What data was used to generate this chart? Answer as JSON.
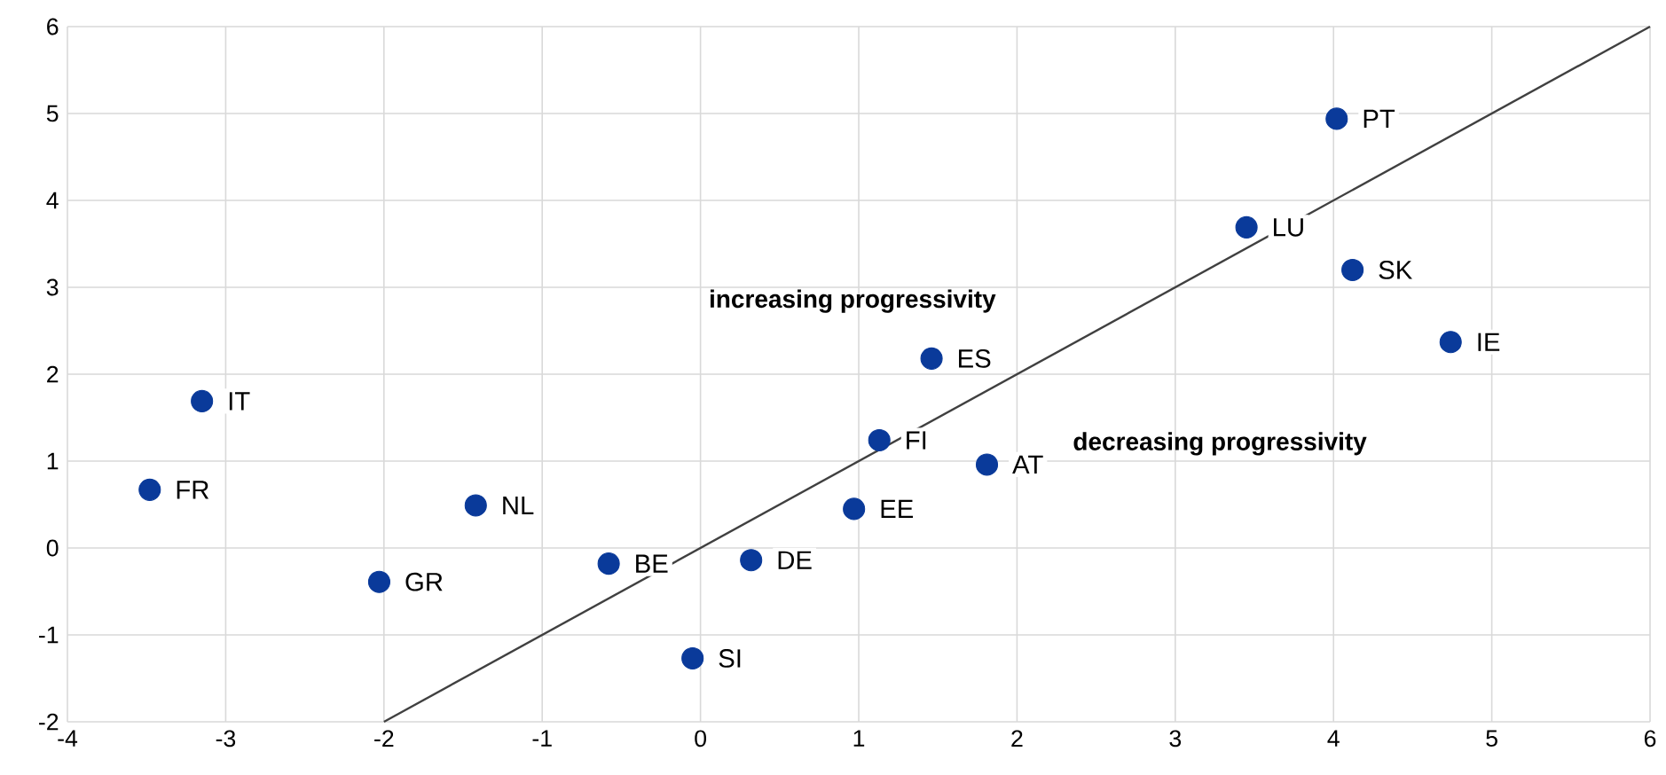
{
  "chart_data": {
    "type": "scatter",
    "xlim": [
      -4,
      6
    ],
    "ylim": [
      -2,
      6
    ],
    "xticks": [
      -4,
      -3,
      -2,
      -1,
      0,
      1,
      2,
      3,
      4,
      5,
      6
    ],
    "yticks": [
      -2,
      -1,
      0,
      1,
      2,
      3,
      4,
      5,
      6
    ],
    "grid": true,
    "series": [
      {
        "marker": "circle",
        "color": "#0a3a9a",
        "x": [
          -3.15,
          -3.48,
          -2.03,
          -1.42,
          -0.58,
          -0.05,
          0.32,
          0.97,
          1.13,
          1.46,
          1.81,
          3.45,
          4.02,
          4.12,
          4.74
        ],
        "values": [
          1.69,
          0.67,
          -0.39,
          0.49,
          -0.18,
          -1.27,
          -0.14,
          0.45,
          1.24,
          2.18,
          0.96,
          3.69,
          4.94,
          3.2,
          2.37
        ]
      },
      {
        "type": "line",
        "marker": "none",
        "color": "#404040",
        "x": [
          -2,
          6
        ],
        "values": [
          -2,
          6
        ]
      }
    ],
    "annotations": [
      {
        "text": "IT",
        "x": -3.15,
        "y": 1.69
      },
      {
        "text": "FR",
        "x": -3.48,
        "y": 0.67
      },
      {
        "text": "GR",
        "x": -2.03,
        "y": -0.39
      },
      {
        "text": "NL",
        "x": -1.42,
        "y": 0.49
      },
      {
        "text": "BE",
        "x": -0.58,
        "y": -0.18
      },
      {
        "text": "SI",
        "x": -0.05,
        "y": -1.27
      },
      {
        "text": "DE",
        "x": 0.32,
        "y": -0.14
      },
      {
        "text": "EE",
        "x": 0.97,
        "y": 0.45
      },
      {
        "text": "FI",
        "x": 1.13,
        "y": 1.24
      },
      {
        "text": "ES",
        "x": 1.46,
        "y": 2.18
      },
      {
        "text": "AT",
        "x": 1.81,
        "y": 0.96
      },
      {
        "text": "LU",
        "x": 3.45,
        "y": 3.69
      },
      {
        "text": "PT",
        "x": 4.02,
        "y": 4.94
      },
      {
        "text": "SK",
        "x": 4.12,
        "y": 3.2
      },
      {
        "text": "IE",
        "x": 4.74,
        "y": 2.37
      },
      "increasing progressivity",
      "decreasing progressivity"
    ]
  }
}
